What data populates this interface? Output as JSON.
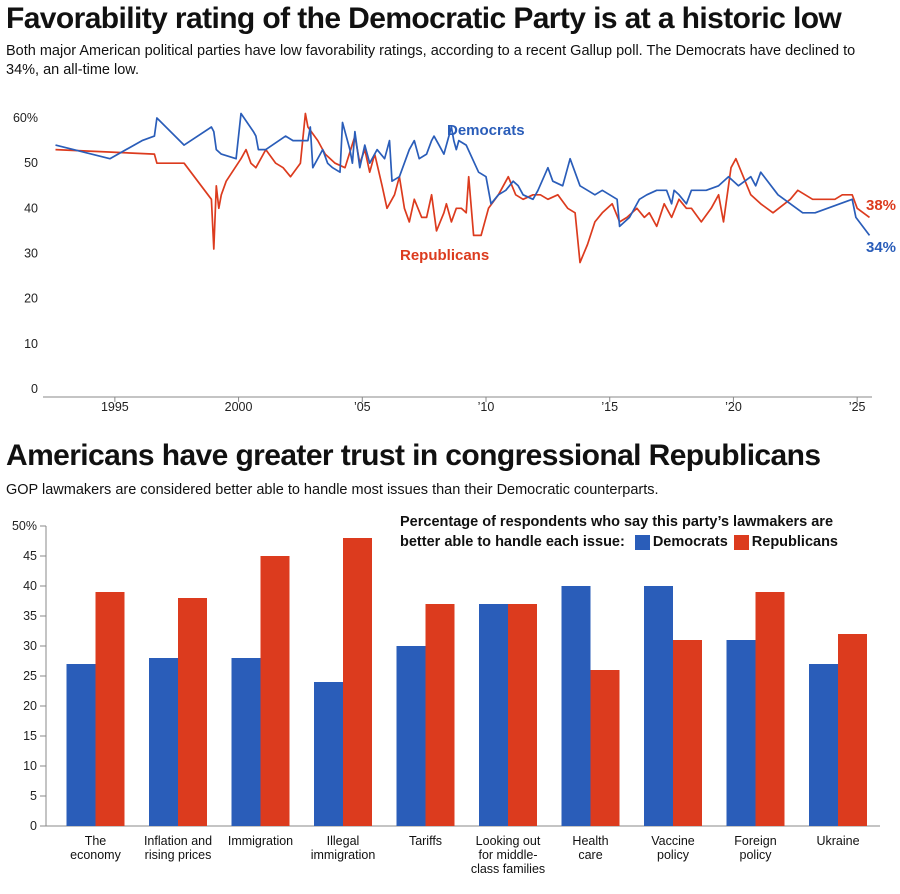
{
  "colors": {
    "democrats": "#2a5db9",
    "republicans": "#dc3b1e",
    "axis": "#888888"
  },
  "section1": {
    "title": "Favorability rating of the Democratic Party is at a historic low",
    "subtitle": "Both major American political parties have low favorability ratings, according to a recent Gallup poll. The Democrats have declined to 34%, an all-time low.",
    "series_label_dem": "Democrats",
    "series_label_rep": "Republicans",
    "end_label_dem": "34%",
    "end_label_rep": "38%"
  },
  "section2": {
    "title": "Americans have greater trust in congressional Republicans",
    "subtitle": "GOP lawmakers are considered better able to handle most issues than their Democratic counterparts.",
    "legend_line1": "Percentage of respondents who say this party’s lawmakers are",
    "legend_line2": "better able to handle each issue:",
    "legend_dem": "Democrats",
    "legend_rep": "Republicans"
  },
  "chart_data": [
    {
      "type": "line",
      "title": "Favorability rating of the Democratic Party is at a historic low",
      "ylim": [
        0,
        60
      ],
      "xlim": [
        1992.5,
        2025.6
      ],
      "y_ticks": [
        "0",
        "10",
        "20",
        "30",
        "40",
        "50",
        "60%"
      ],
      "x_ticks": [
        {
          "x": 1995,
          "label": "1995"
        },
        {
          "x": 2000,
          "label": "2000"
        },
        {
          "x": 2005,
          "label": "’05"
        },
        {
          "x": 2010,
          "label": "’10"
        },
        {
          "x": 2015,
          "label": "’15"
        },
        {
          "x": 2020,
          "label": "’20"
        },
        {
          "x": 2025,
          "label": "’25"
        }
      ],
      "series": [
        {
          "name": "Democrats",
          "points": [
            [
              1992.6,
              54
            ],
            [
              1994.8,
              51
            ],
            [
              1996.1,
              55
            ],
            [
              1996.6,
              56
            ],
            [
              1996.7,
              60
            ],
            [
              1997.8,
              54
            ],
            [
              1998.9,
              58
            ],
            [
              1999.0,
              57
            ],
            [
              1999.1,
              53
            ],
            [
              1999.3,
              52
            ],
            [
              1999.9,
              51
            ],
            [
              2000.1,
              61
            ],
            [
              2000.6,
              57
            ],
            [
              2000.7,
              56
            ],
            [
              2000.8,
              53
            ],
            [
              2001.1,
              53
            ],
            [
              2001.9,
              56
            ],
            [
              2002.2,
              55
            ],
            [
              2002.6,
              55
            ],
            [
              2002.8,
              55
            ],
            [
              2002.9,
              58
            ],
            [
              2003.0,
              49
            ],
            [
              2003.4,
              53
            ],
            [
              2003.6,
              50
            ],
            [
              2003.8,
              49
            ],
            [
              2004.1,
              48
            ],
            [
              2004.2,
              59
            ],
            [
              2004.5,
              53
            ],
            [
              2004.6,
              50
            ],
            [
              2004.7,
              57
            ],
            [
              2004.9,
              49
            ],
            [
              2005.1,
              54
            ],
            [
              2005.3,
              50
            ],
            [
              2005.6,
              53
            ],
            [
              2005.9,
              51
            ],
            [
              2006.1,
              55
            ],
            [
              2006.2,
              46
            ],
            [
              2006.5,
              47
            ],
            [
              2006.9,
              53
            ],
            [
              2007.1,
              55
            ],
            [
              2007.3,
              51
            ],
            [
              2007.6,
              52
            ],
            [
              2007.8,
              55
            ],
            [
              2007.9,
              56
            ],
            [
              2008.1,
              54
            ],
            [
              2008.3,
              52
            ],
            [
              2008.6,
              58
            ],
            [
              2008.7,
              55
            ],
            [
              2008.8,
              53
            ],
            [
              2008.9,
              55
            ],
            [
              2009.2,
              54
            ],
            [
              2009.7,
              48
            ],
            [
              2010.0,
              47
            ],
            [
              2010.2,
              41
            ],
            [
              2010.5,
              43
            ],
            [
              2010.8,
              44
            ],
            [
              2011.1,
              46
            ],
            [
              2011.3,
              45
            ],
            [
              2011.5,
              43
            ],
            [
              2011.9,
              42
            ],
            [
              2012.1,
              44
            ],
            [
              2012.5,
              49
            ],
            [
              2012.7,
              46
            ],
            [
              2013.1,
              45
            ],
            [
              2013.4,
              51
            ],
            [
              2013.8,
              45
            ],
            [
              2014.1,
              44
            ],
            [
              2014.4,
              43
            ],
            [
              2014.7,
              44
            ],
            [
              2015.0,
              43
            ],
            [
              2015.3,
              42
            ],
            [
              2015.4,
              36
            ],
            [
              2015.8,
              38
            ],
            [
              2016.2,
              42
            ],
            [
              2016.5,
              43
            ],
            [
              2016.9,
              44
            ],
            [
              2017.3,
              44
            ],
            [
              2017.5,
              41
            ],
            [
              2017.6,
              44
            ],
            [
              2017.8,
              43
            ],
            [
              2018.1,
              41
            ],
            [
              2018.3,
              44
            ],
            [
              2018.6,
              44
            ],
            [
              2018.9,
              44
            ],
            [
              2019.4,
              45
            ],
            [
              2019.8,
              47
            ],
            [
              2020.2,
              45
            ],
            [
              2020.7,
              47
            ],
            [
              2020.9,
              45
            ],
            [
              2021.1,
              48
            ],
            [
              2021.8,
              43
            ],
            [
              2022.8,
              39
            ],
            [
              2023.3,
              39
            ],
            [
              2024.3,
              41
            ],
            [
              2024.8,
              42
            ],
            [
              2024.95,
              38
            ],
            [
              2025.5,
              34
            ]
          ]
        },
        {
          "name": "Republicans",
          "points": [
            [
              1992.6,
              53
            ],
            [
              1996.6,
              52
            ],
            [
              1996.7,
              50
            ],
            [
              1997.8,
              50
            ],
            [
              1998.9,
              42
            ],
            [
              1999.0,
              31
            ],
            [
              1999.1,
              45
            ],
            [
              1999.2,
              40
            ],
            [
              1999.3,
              43
            ],
            [
              1999.5,
              46
            ],
            [
              2000.1,
              51
            ],
            [
              2000.3,
              53
            ],
            [
              2000.5,
              50
            ],
            [
              2000.7,
              49
            ],
            [
              2001.1,
              53
            ],
            [
              2001.5,
              50
            ],
            [
              2001.8,
              49
            ],
            [
              2002.1,
              47
            ],
            [
              2002.5,
              50
            ],
            [
              2002.7,
              61
            ],
            [
              2002.8,
              58
            ],
            [
              2003.2,
              55
            ],
            [
              2003.4,
              53
            ],
            [
              2003.5,
              52
            ],
            [
              2003.9,
              50
            ],
            [
              2004.3,
              49
            ],
            [
              2004.7,
              56
            ],
            [
              2004.9,
              50
            ],
            [
              2005.1,
              53
            ],
            [
              2005.3,
              48
            ],
            [
              2005.5,
              52
            ],
            [
              2005.8,
              45
            ],
            [
              2006.0,
              40
            ],
            [
              2006.3,
              43
            ],
            [
              2006.5,
              47
            ],
            [
              2006.7,
              40
            ],
            [
              2006.9,
              37
            ],
            [
              2007.1,
              42
            ],
            [
              2007.4,
              38
            ],
            [
              2007.6,
              38
            ],
            [
              2007.8,
              43
            ],
            [
              2008.0,
              35
            ],
            [
              2008.3,
              39
            ],
            [
              2008.4,
              41
            ],
            [
              2008.6,
              37
            ],
            [
              2008.8,
              40
            ],
            [
              2009.0,
              40
            ],
            [
              2009.2,
              39
            ],
            [
              2009.3,
              47
            ],
            [
              2009.5,
              34
            ],
            [
              2009.8,
              34
            ],
            [
              2010.1,
              40
            ],
            [
              2010.5,
              43
            ],
            [
              2010.9,
              47
            ],
            [
              2011.2,
              43
            ],
            [
              2011.5,
              42
            ],
            [
              2011.9,
              43
            ],
            [
              2012.2,
              43
            ],
            [
              2012.5,
              42
            ],
            [
              2012.9,
              43
            ],
            [
              2013.3,
              40
            ],
            [
              2013.6,
              39
            ],
            [
              2013.8,
              28
            ],
            [
              2014.1,
              32
            ],
            [
              2014.4,
              37
            ],
            [
              2014.7,
              39
            ],
            [
              2015.1,
              41
            ],
            [
              2015.4,
              37
            ],
            [
              2015.7,
              38
            ],
            [
              2016.1,
              40
            ],
            [
              2016.4,
              38
            ],
            [
              2016.6,
              39
            ],
            [
              2016.9,
              36
            ],
            [
              2017.2,
              41
            ],
            [
              2017.5,
              38
            ],
            [
              2017.8,
              42
            ],
            [
              2018.1,
              40
            ],
            [
              2018.3,
              40
            ],
            [
              2018.7,
              37
            ],
            [
              2019.1,
              40
            ],
            [
              2019.4,
              43
            ],
            [
              2019.6,
              37
            ],
            [
              2019.9,
              49
            ],
            [
              2020.1,
              51
            ],
            [
              2020.4,
              47
            ],
            [
              2020.7,
              43
            ],
            [
              2021.1,
              41
            ],
            [
              2021.6,
              39
            ],
            [
              2022.3,
              42
            ],
            [
              2022.6,
              44
            ],
            [
              2023.2,
              42
            ],
            [
              2024.1,
              42
            ],
            [
              2024.4,
              43
            ],
            [
              2024.8,
              43
            ],
            [
              2025.0,
              40
            ],
            [
              2025.5,
              38
            ]
          ]
        }
      ]
    },
    {
      "type": "bar",
      "title": "Americans have greater trust in congressional Republicans",
      "ylim": [
        0,
        50
      ],
      "y_ticks": [
        "0",
        "5",
        "10",
        "15",
        "20",
        "25",
        "30",
        "35",
        "40",
        "45",
        "50%"
      ],
      "categories": [
        [
          "The",
          "economy"
        ],
        [
          "Inflation and",
          "rising prices"
        ],
        [
          "Immigration"
        ],
        [
          "Illegal",
          "immigration"
        ],
        [
          "Tariffs"
        ],
        [
          "Looking out",
          "for middle-",
          "class families"
        ],
        [
          "Health",
          "care"
        ],
        [
          "Vaccine",
          "policy"
        ],
        [
          "Foreign",
          "policy"
        ],
        [
          "Ukraine"
        ]
      ],
      "series": [
        {
          "name": "Democrats",
          "values": [
            27,
            28,
            28,
            24,
            30,
            37,
            40,
            40,
            31,
            27
          ]
        },
        {
          "name": "Republicans",
          "values": [
            39,
            38,
            45,
            48,
            37,
            37,
            26,
            31,
            39,
            32
          ]
        }
      ]
    }
  ]
}
